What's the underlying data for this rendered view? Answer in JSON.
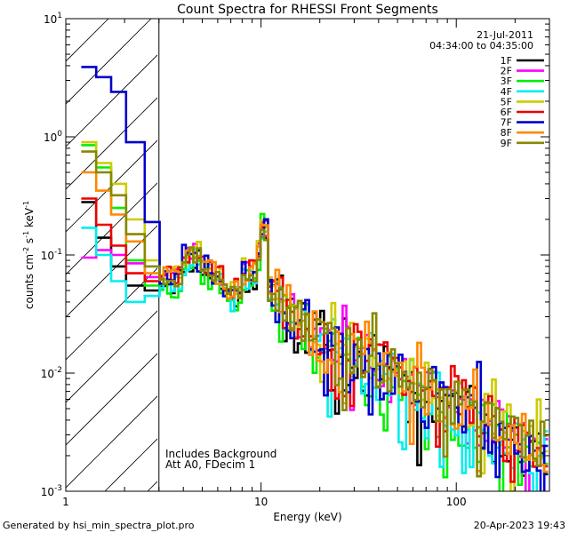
{
  "chart_data": {
    "type": "line",
    "title": "Count Spectra for RHESSI Front Segments",
    "xlabel": "Energy (keV)",
    "ylabel_main": "counts cm",
    "ylabel_sup1": "-2",
    "ylabel_mid": " s",
    "ylabel_sup2": "-1",
    "ylabel_end": " keV",
    "ylabel_sup3": "-1",
    "xscale": "log",
    "yscale": "log",
    "xlim": [
      1,
      300
    ],
    "ylim": [
      0.001,
      10
    ],
    "x_tick_labels": [
      {
        "value": 1,
        "label": "1"
      },
      {
        "value": 10,
        "label": "10"
      },
      {
        "value": 100,
        "label": "100"
      }
    ],
    "y_tick_labels": [
      {
        "value": 10,
        "base": "10",
        "exp": "1"
      },
      {
        "value": 1,
        "base": "10",
        "exp": "0"
      },
      {
        "value": 0.1,
        "base": "10",
        "exp": "-1"
      },
      {
        "value": 0.01,
        "base": "10",
        "exp": "-2"
      },
      {
        "value": 0.001,
        "base": "10",
        "exp": "-3"
      }
    ],
    "date": "21-Jul-2011",
    "time_range": "04:34:00 to 04:35:00",
    "hatched_region_max_energy": 3,
    "annotations": [
      "Includes Background",
      "Att A0, FDecim 1"
    ],
    "footer_left": "Generated by hsi_min_spectra_plot.pro",
    "footer_right": "20-Apr-2023 19:43",
    "legend_position": "top-right",
    "series": [
      {
        "name": "1F",
        "color": "#000000",
        "scale": 0.92,
        "jitter": 0.26,
        "seed": 11,
        "low": [
          0.28,
          0.14,
          0.08,
          0.055,
          0.05
        ]
      },
      {
        "name": "2F",
        "color": "#ff00ff",
        "scale": 1.05,
        "jitter": 0.18,
        "seed": 23,
        "low": [
          0.095,
          0.11,
          0.1,
          0.085,
          0.065
        ]
      },
      {
        "name": "3F",
        "color": "#00ee00",
        "scale": 0.85,
        "jitter": 0.24,
        "seed": 37,
        "low": [
          0.85,
          0.55,
          0.25,
          0.09,
          0.055
        ]
      },
      {
        "name": "4F",
        "color": "#00eeee",
        "scale": 0.88,
        "jitter": 0.24,
        "seed": 41,
        "low": [
          0.17,
          0.1,
          0.06,
          0.04,
          0.045
        ]
      },
      {
        "name": "5F",
        "color": "#cccc00",
        "scale": 1.1,
        "jitter": 0.2,
        "seed": 53,
        "low": [
          0.9,
          0.6,
          0.4,
          0.2,
          0.09
        ]
      },
      {
        "name": "6F",
        "color": "#ee0000",
        "scale": 1.08,
        "jitter": 0.2,
        "seed": 67,
        "low": [
          0.3,
          0.18,
          0.12,
          0.07,
          0.06
        ]
      },
      {
        "name": "7F",
        "color": "#0000cc",
        "scale": 0.95,
        "jitter": 0.24,
        "seed": 71,
        "low": [
          3.9,
          3.2,
          2.4,
          0.9,
          0.19
        ]
      },
      {
        "name": "8F",
        "color": "#ff8800",
        "scale": 1.0,
        "jitter": 0.2,
        "seed": 83,
        "low": [
          0.5,
          0.35,
          0.22,
          0.13,
          0.07
        ]
      },
      {
        "name": "9F",
        "color": "#888800",
        "scale": 1.0,
        "jitter": 0.18,
        "seed": 97,
        "low": [
          0.75,
          0.5,
          0.32,
          0.15,
          0.08
        ]
      }
    ]
  }
}
